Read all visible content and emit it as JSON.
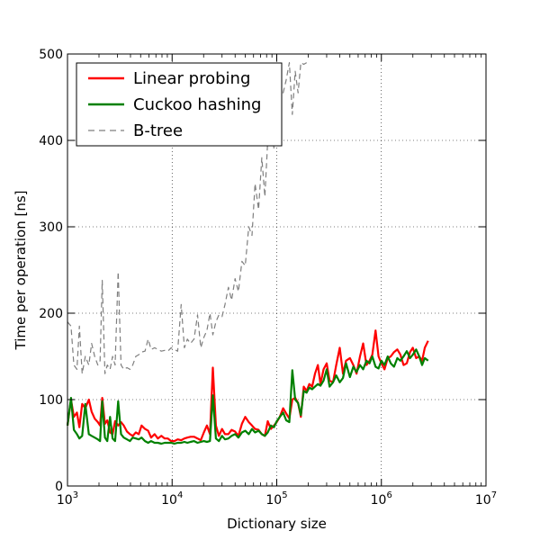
{
  "chart_data": {
    "type": "line",
    "xlabel": "Dictionary size",
    "ylabel": "Time per operation [ns]",
    "xscale": "log",
    "xlim": [
      1000,
      10000000
    ],
    "ylim": [
      0,
      500
    ],
    "grid": true,
    "legend_position": "top-left",
    "x_tick_labels": [
      {
        "base": "10",
        "exp": "3",
        "value": 1000
      },
      {
        "base": "10",
        "exp": "4",
        "value": 10000
      },
      {
        "base": "10",
        "exp": "5",
        "value": 100000
      },
      {
        "base": "10",
        "exp": "6",
        "value": 1000000
      },
      {
        "base": "10",
        "exp": "7",
        "value": 10000000
      }
    ],
    "y_ticks": [
      {
        "label": "0",
        "value": 0
      },
      {
        "label": "100",
        "value": 100
      },
      {
        "label": "200",
        "value": 200
      },
      {
        "label": "300",
        "value": 300
      },
      {
        "label": "400",
        "value": 400
      },
      {
        "label": "500",
        "value": 500
      }
    ],
    "series": [
      {
        "name": "Linear probing",
        "color": "#ff0000",
        "style": "solid",
        "x": [
          1000,
          1080,
          1150,
          1230,
          1300,
          1380,
          1480,
          1600,
          1700,
          1820,
          1950,
          2050,
          2150,
          2280,
          2400,
          2550,
          2700,
          2850,
          3050,
          3250,
          3450,
          3700,
          3950,
          4200,
          4500,
          4800,
          5100,
          5500,
          5900,
          6300,
          6800,
          7300,
          7900,
          8500,
          9100,
          9800,
          10500,
          11300,
          12200,
          13100,
          14000,
          15000,
          16200,
          17500,
          18800,
          20100,
          21500,
          23000,
          24500,
          26200,
          28000,
          30000,
          32000,
          34500,
          37000,
          40000,
          43000,
          46500,
          50000,
          54000,
          58000,
          62000,
          67000,
          72000,
          77000,
          82000,
          88000,
          94000,
          100000,
          107000,
          115000,
          123000,
          132000,
          141000,
          150000,
          160000,
          170000,
          181000,
          193000,
          205000,
          218000,
          232000,
          247000,
          262000,
          280000,
          300000,
          320000,
          345000,
          370000,
          400000,
          430000,
          460000,
          500000,
          540000,
          580000,
          625000,
          670000,
          720000,
          770000,
          820000,
          880000,
          940000,
          1000000,
          1070000,
          1150000,
          1230000,
          1320000,
          1420000,
          1520000,
          1630000,
          1750000,
          1880000,
          2000000,
          2150000,
          2300000,
          2450000,
          2600000,
          2800000
        ],
        "y": [
          70,
          100,
          80,
          85,
          68,
          95,
          90,
          100,
          86,
          78,
          74,
          70,
          102,
          72,
          76,
          62,
          60,
          75,
          70,
          74,
          70,
          63,
          60,
          58,
          62,
          60,
          70,
          66,
          64,
          56,
          60,
          55,
          58,
          55,
          55,
          52,
          52,
          54,
          53,
          55,
          56,
          57,
          57,
          55,
          53,
          62,
          70,
          60,
          137,
          70,
          58,
          66,
          60,
          60,
          65,
          63,
          58,
          72,
          80,
          74,
          70,
          66,
          65,
          60,
          58,
          75,
          66,
          70,
          74,
          80,
          90,
          84,
          78,
          100,
          102,
          96,
          80,
          115,
          110,
          118,
          115,
          130,
          140,
          118,
          135,
          142,
          122,
          120,
          140,
          160,
          130,
          145,
          148,
          140,
          130,
          150,
          165,
          140,
          145,
          152,
          180,
          150,
          142,
          135,
          148,
          150,
          155,
          158,
          152,
          140,
          142,
          155,
          160,
          148,
          150,
          145,
          160,
          168
        ]
      },
      {
        "name": "Cuckoo hashing",
        "color": "#008000",
        "style": "solid",
        "x": [
          1000,
          1080,
          1150,
          1230,
          1300,
          1380,
          1480,
          1600,
          1700,
          1820,
          1950,
          2050,
          2150,
          2280,
          2400,
          2550,
          2700,
          2850,
          3050,
          3250,
          3450,
          3700,
          3950,
          4200,
          4500,
          4800,
          5100,
          5500,
          5900,
          6300,
          6800,
          7300,
          7900,
          8500,
          9100,
          9800,
          10500,
          11300,
          12200,
          13100,
          14000,
          15000,
          16200,
          17500,
          18800,
          20100,
          21500,
          23000,
          24500,
          26200,
          28000,
          30000,
          32000,
          34500,
          37000,
          40000,
          43000,
          46500,
          50000,
          54000,
          58000,
          62000,
          67000,
          72000,
          77000,
          82000,
          88000,
          94000,
          100000,
          107000,
          115000,
          123000,
          132000,
          141000,
          150000,
          160000,
          170000,
          181000,
          193000,
          205000,
          218000,
          232000,
          247000,
          262000,
          280000,
          300000,
          320000,
          345000,
          370000,
          400000,
          430000,
          460000,
          500000,
          540000,
          580000,
          625000,
          670000,
          720000,
          770000,
          820000,
          880000,
          940000,
          1000000,
          1070000,
          1150000,
          1230000,
          1320000,
          1420000,
          1520000,
          1630000,
          1750000,
          1880000,
          2000000,
          2150000,
          2300000,
          2450000,
          2600000,
          2800000
        ],
        "y": [
          70,
          102,
          65,
          60,
          55,
          58,
          95,
          60,
          58,
          56,
          54,
          52,
          98,
          56,
          52,
          80,
          55,
          52,
          98,
          60,
          56,
          54,
          52,
          56,
          55,
          54,
          56,
          52,
          50,
          52,
          50,
          50,
          49,
          50,
          50,
          50,
          49,
          50,
          50,
          51,
          50,
          51,
          52,
          50,
          51,
          52,
          51,
          52,
          105,
          55,
          52,
          58,
          54,
          55,
          58,
          60,
          56,
          62,
          64,
          60,
          66,
          62,
          64,
          60,
          58,
          62,
          70,
          68,
          75,
          80,
          85,
          76,
          74,
          134,
          100,
          96,
          82,
          110,
          108,
          114,
          112,
          115,
          118,
          116,
          122,
          135,
          115,
          120,
          128,
          120,
          125,
          142,
          126,
          138,
          132,
          140,
          135,
          145,
          142,
          150,
          138,
          136,
          145,
          140,
          150,
          142,
          138,
          148,
          145,
          150,
          156,
          148,
          152,
          158,
          150,
          140,
          148,
          145
        ]
      },
      {
        "name": "B-tree",
        "color": "#7f7f7f",
        "style": "dashed",
        "x": [
          1000,
          1080,
          1150,
          1230,
          1300,
          1380,
          1480,
          1600,
          1700,
          1820,
          1950,
          2050,
          2150,
          2280,
          2400,
          2550,
          2700,
          2850,
          3050,
          3250,
          3450,
          3700,
          3950,
          4200,
          4500,
          4800,
          5100,
          5500,
          5900,
          6300,
          6800,
          7300,
          7900,
          8500,
          9100,
          9800,
          10500,
          11300,
          12200,
          13100,
          14000,
          15000,
          16200,
          17500,
          18800,
          20100,
          21500,
          23000,
          24500,
          26200,
          28000,
          30000,
          32000,
          34500,
          37000,
          40000,
          43000,
          46500,
          50000,
          54000,
          58000,
          62000,
          67000,
          72000,
          77000,
          82000,
          88000,
          94000,
          100000,
          107000,
          115000,
          123000,
          132000,
          141000,
          150000,
          160000,
          170000,
          181000,
          193000
        ],
        "y": [
          190,
          185,
          140,
          135,
          185,
          130,
          150,
          140,
          165,
          150,
          140,
          145,
          238,
          130,
          140,
          135,
          150,
          140,
          248,
          140,
          135,
          137,
          135,
          140,
          150,
          152,
          155,
          156,
          170,
          158,
          160,
          158,
          156,
          157,
          156,
          160,
          158,
          156,
          210,
          160,
          170,
          165,
          170,
          198,
          160,
          172,
          180,
          200,
          175,
          190,
          198,
          196,
          210,
          230,
          215,
          240,
          225,
          260,
          255,
          300,
          290,
          350,
          320,
          380,
          335,
          400,
          455,
          390,
          460,
          465,
          455,
          470,
          490,
          430,
          480,
          455,
          490,
          488,
          490
        ]
      }
    ]
  }
}
